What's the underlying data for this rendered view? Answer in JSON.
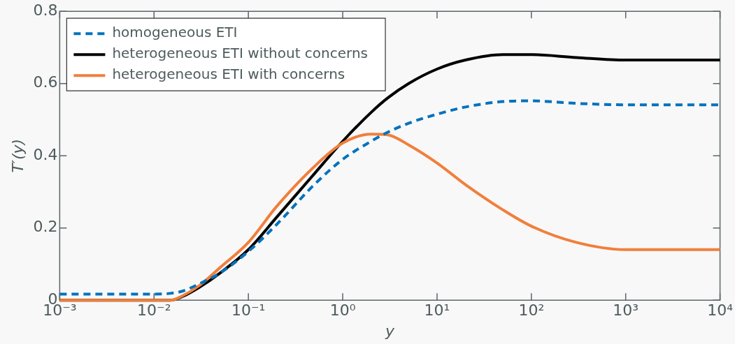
{
  "chart_data": {
    "type": "line",
    "xlabel": "y",
    "ylabel": "T′(y)",
    "log": "x",
    "x": [
      0.001,
      0.005,
      0.01,
      0.015,
      0.02,
      0.03,
      0.05,
      0.1,
      0.2,
      0.5,
      1,
      2,
      3,
      5,
      10,
      20,
      50,
      100,
      300,
      1000,
      10000
    ],
    "series": [
      {
        "name": "homogeneous ETI",
        "color": "#0072bd",
        "line_style": "dashed",
        "values": [
          0.017,
          0.017,
          0.017,
          0.019,
          0.025,
          0.045,
          0.075,
          0.135,
          0.21,
          0.32,
          0.39,
          0.44,
          0.465,
          0.49,
          0.515,
          0.535,
          0.55,
          0.552,
          0.545,
          0.541,
          0.541
        ]
      },
      {
        "name": "heterogeneous ETI without concerns",
        "color": "#000000",
        "line_style": "solid",
        "values": [
          0,
          0,
          0,
          0,
          0.01,
          0.035,
          0.075,
          0.14,
          0.23,
          0.35,
          0.44,
          0.52,
          0.56,
          0.6,
          0.64,
          0.665,
          0.68,
          0.68,
          0.672,
          0.665,
          0.665
        ]
      },
      {
        "name": "heterogeneous ETI with concerns",
        "color": "#f07f3c",
        "line_style": "solid",
        "values": [
          0,
          0,
          0,
          0,
          0.012,
          0.04,
          0.09,
          0.16,
          0.26,
          0.37,
          0.435,
          0.46,
          0.458,
          0.43,
          0.38,
          0.32,
          0.25,
          0.205,
          0.16,
          0.14,
          0.14
        ]
      }
    ],
    "xlim": [
      0.001,
      10000
    ],
    "xticks": [
      {
        "value": 0.001,
        "label": "10⁻³"
      },
      {
        "value": 0.01,
        "label": "10⁻²"
      },
      {
        "value": 0.1,
        "label": "10⁻¹"
      },
      {
        "value": 1,
        "label": "10⁰"
      },
      {
        "value": 10,
        "label": "10¹"
      },
      {
        "value": 100,
        "label": "10²"
      },
      {
        "value": 1000,
        "label": "10³"
      },
      {
        "value": 10000,
        "label": "10⁴"
      }
    ],
    "ylim": [
      0,
      0.8
    ],
    "yticks": [
      0,
      0.2,
      0.4,
      0.6,
      0.8
    ],
    "grid": false,
    "legend": "top left",
    "marker": "none"
  }
}
